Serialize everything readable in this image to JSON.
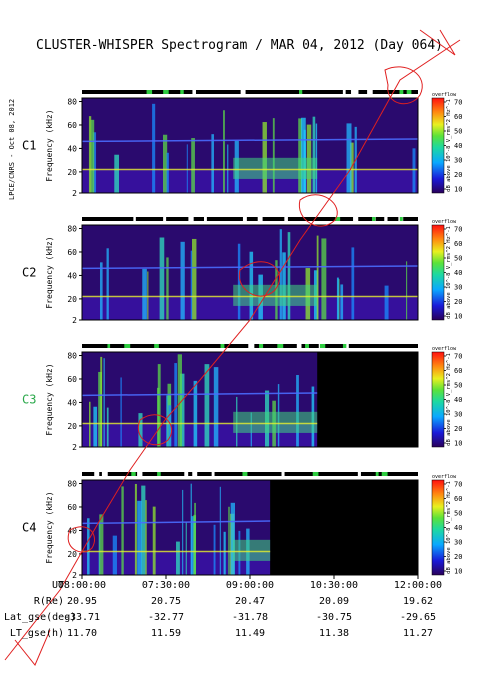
{
  "title": "CLUSTER-WHISPER Spectrogram / MAR 04, 2012 (Day 064)",
  "side_label": "LPCE/CNRS - Oct 08, 2012",
  "colorbar": {
    "label": "dB above 10^-8 V_rms^2 Hz^-1",
    "top_caption": "overflow",
    "ticks": [
      "70",
      "60",
      "50",
      "40",
      "30",
      "20",
      "10"
    ]
  },
  "chart_data": {
    "type": "heatmap",
    "title": "CLUSTER-WHISPER Spectrogram / MAR 04, 2012 (Day 064)",
    "xlabel": "UT",
    "ylabel": "Frequency (kHz)",
    "x_ticks": [
      "08:00:00",
      "07:30:00",
      "09:00:00",
      "10:30:00",
      "12:00:00"
    ],
    "ylim": [
      2,
      83
    ],
    "y_ticks": [
      "80",
      "60",
      "40",
      "20",
      "2"
    ],
    "colorbar_range": [
      10,
      70
    ],
    "panels": [
      {
        "name": "C1",
        "label_color": "#000000",
        "data_end_fraction": 1.0
      },
      {
        "name": "C2",
        "label_color": "#000000",
        "data_end_fraction": 1.0
      },
      {
        "name": "C3",
        "label_color": "#2aa84a",
        "data_end_fraction": 0.7
      },
      {
        "name": "C4",
        "label_color": "#000000",
        "data_end_fraction": 0.56
      }
    ]
  },
  "ephemeris": {
    "rows": [
      {
        "label": "UT",
        "values": [
          "08:00:00",
          "07:30:00",
          "09:00:00",
          "10:30:00",
          "12:00:00"
        ]
      },
      {
        "label": "R(Re)",
        "values": [
          "20.95",
          "20.75",
          "20.47",
          "20.09",
          "19.62"
        ]
      },
      {
        "label": "Lat_gse(deg)",
        "values": [
          "-33.71",
          "-32.77",
          "-31.78",
          "-30.75",
          "-29.65"
        ]
      },
      {
        "label": "LT_gse(h)",
        "values": [
          "11.70",
          "11.59",
          "11.49",
          "11.38",
          "11.27"
        ]
      }
    ]
  }
}
